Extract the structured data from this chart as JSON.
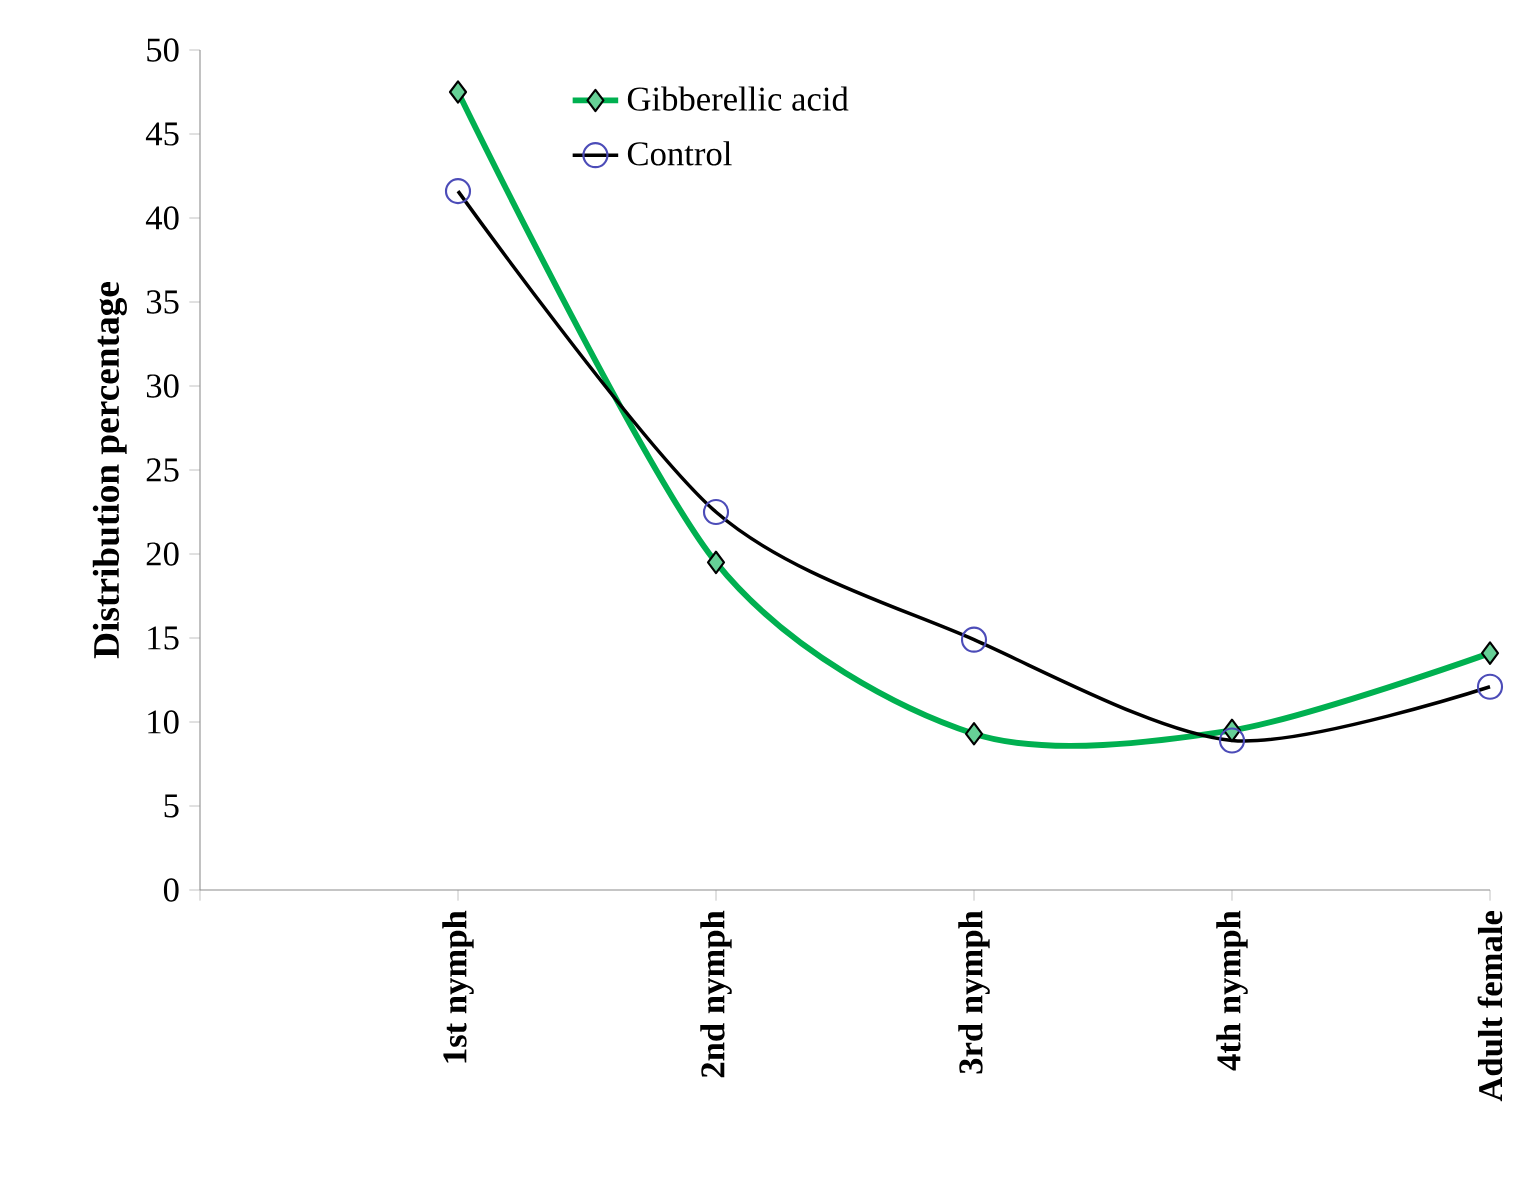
{
  "chart_data": {
    "type": "line",
    "ylabel": "Distribution percentage",
    "categories": [
      "1st nymph",
      "2nd nymph",
      "3rd nymph",
      "4th nymph",
      "Adult female"
    ],
    "series": [
      {
        "name": "Gibberellic acid",
        "color": "#00b050",
        "marker": "diamond",
        "values": [
          47.5,
          19.5,
          9.3,
          9.5,
          14.1
        ]
      },
      {
        "name": "Control",
        "color": "#000000",
        "marker": "circle",
        "values": [
          41.6,
          22.5,
          14.9,
          8.9,
          12.1
        ]
      }
    ],
    "ylim": [
      0,
      50
    ],
    "yticks": [
      0,
      5,
      10,
      15,
      20,
      25,
      30,
      35,
      40,
      45,
      50
    ],
    "legend": "top",
    "grid": false
  }
}
